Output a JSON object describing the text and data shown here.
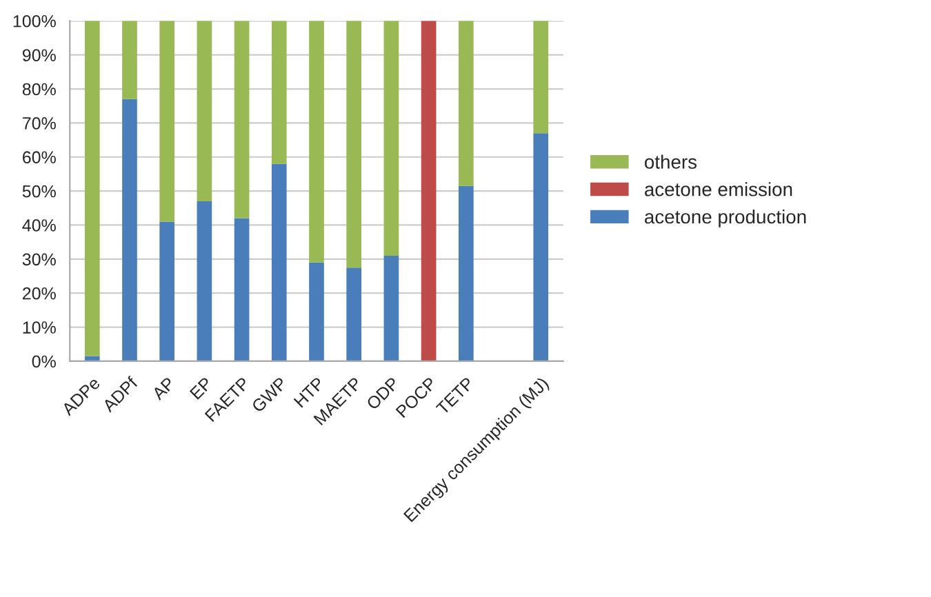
{
  "chart_data": {
    "type": "bar",
    "stacked": true,
    "categories": [
      "ADPe",
      "ADPf",
      "AP",
      "EP",
      "FAETP",
      "GWP",
      "HTP",
      "MAETP",
      "ODP",
      "POCP",
      "TETP",
      null,
      "Energy consumption (MJ)"
    ],
    "series": [
      {
        "name": "acetone production",
        "color": "#4a7ebb",
        "values": [
          1.5,
          77,
          41,
          47,
          42,
          58,
          29,
          27.5,
          31,
          null,
          51.5,
          null,
          67
        ]
      },
      {
        "name": "acetone emission",
        "color": "#be4b48",
        "values": [
          null,
          null,
          null,
          null,
          null,
          null,
          null,
          null,
          null,
          100,
          null,
          null,
          null
        ]
      },
      {
        "name": "others",
        "color": "#98b954",
        "values": [
          98.5,
          23,
          59,
          53,
          58,
          42,
          71,
          72.5,
          69,
          null,
          48.5,
          null,
          33
        ]
      }
    ],
    "ylim": [
      0,
      100
    ],
    "yticks": [
      {
        "value": 0,
        "label": "0%"
      },
      {
        "value": 10,
        "label": "10%"
      },
      {
        "value": 20,
        "label": "20%"
      },
      {
        "value": 30,
        "label": "30%"
      },
      {
        "value": 40,
        "label": "40%"
      },
      {
        "value": 50,
        "label": "50%"
      },
      {
        "value": 60,
        "label": "60%"
      },
      {
        "value": 70,
        "label": "70%"
      },
      {
        "value": 80,
        "label": "80%"
      },
      {
        "value": 90,
        "label": "90%"
      },
      {
        "value": 100,
        "label": "100%"
      }
    ],
    "grid": "y",
    "legend": "right"
  }
}
